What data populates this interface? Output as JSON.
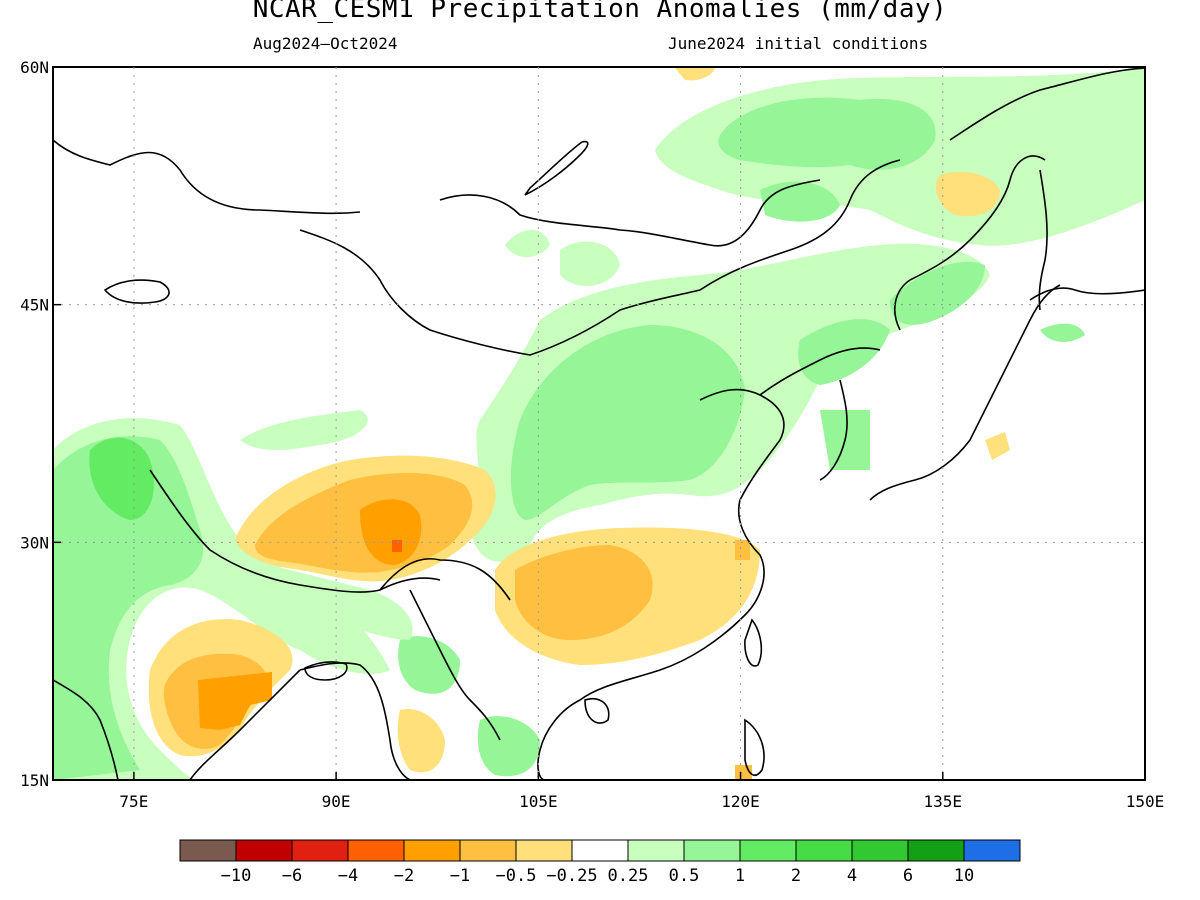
{
  "title": "NCAR_CESM1 Precipitation Anomalies (mm/day)",
  "subtitle_left": "Aug2024–Oct2024",
  "subtitle_right": "June2024 initial conditions",
  "map": {
    "lon_range": [
      69,
      150
    ],
    "lat_range": [
      15,
      60
    ],
    "lon_ticks": [
      {
        "value": 75,
        "label": "75E"
      },
      {
        "value": 90,
        "label": "90E"
      },
      {
        "value": 105,
        "label": "105E"
      },
      {
        "value": 120,
        "label": "120E"
      },
      {
        "value": 135,
        "label": "135E"
      },
      {
        "value": 150,
        "label": "150E"
      }
    ],
    "lat_ticks": [
      {
        "value": 60,
        "label": "60N"
      },
      {
        "value": 45,
        "label": "45N"
      },
      {
        "value": 30,
        "label": "30N"
      },
      {
        "value": 15,
        "label": "15N"
      }
    ],
    "grid": true
  },
  "legend": {
    "colors": [
      "#7a5a4e",
      "#c00000",
      "#e02010",
      "#ff6000",
      "#ffa000",
      "#ffbf40",
      "#ffe07a",
      "#ffffff",
      "#c8ffbe",
      "#96f596",
      "#64eb64",
      "#46dc46",
      "#32c832",
      "#14a014",
      "#1e6ee6"
    ],
    "labels": [
      "−10",
      "−6",
      "−4",
      "−2",
      "−1",
      "−0.5",
      "−0.25",
      "0.25",
      "0.5",
      "1",
      "2",
      "4",
      "6",
      "10"
    ]
  },
  "colors": {
    "dry_light": "#ffe07a",
    "dry_medium": "#ffbf40",
    "dry_strong": "#ffa000",
    "dry_extreme": "#ff6000",
    "wet_light": "#c8ffbe",
    "wet_medium": "#96f596",
    "wet_strong": "#64eb64",
    "wet_heavy": "#46dc46",
    "coast": "#000000"
  }
}
